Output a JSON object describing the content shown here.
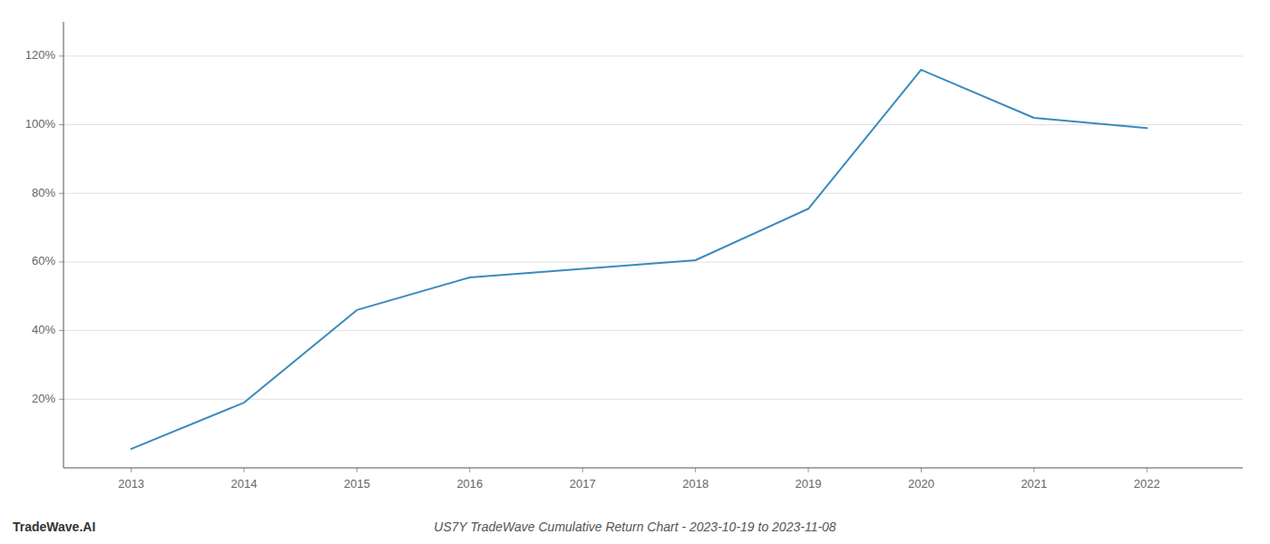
{
  "chart_data": {
    "type": "line",
    "title": "US7Y TradeWave Cumulative Return Chart - 2023-10-19 to 2023-11-08",
    "annotations": [
      "TradeWave.AI"
    ],
    "x": [
      2013,
      2014,
      2015,
      2016,
      2017,
      2018,
      2019,
      2020,
      2021,
      2022
    ],
    "values": [
      5.5,
      19.0,
      46.0,
      55.5,
      58.0,
      60.5,
      75.5,
      116.0,
      102.0,
      99.0
    ],
    "color": "#3a8abf",
    "xlim": [
      2012.4,
      2022.85
    ],
    "xticks": [
      2013,
      2014,
      2015,
      2016,
      2017,
      2018,
      2019,
      2020,
      2021,
      2022
    ],
    "ylim": [
      0,
      130
    ],
    "yticks": [
      {
        "value": 20,
        "label": "20%"
      },
      {
        "value": 40,
        "label": "40%"
      },
      {
        "value": 60,
        "label": "60%"
      },
      {
        "value": 80,
        "label": "80%"
      },
      {
        "value": 100,
        "label": "100%"
      },
      {
        "value": 120,
        "label": "120%"
      }
    ],
    "grid": true
  }
}
